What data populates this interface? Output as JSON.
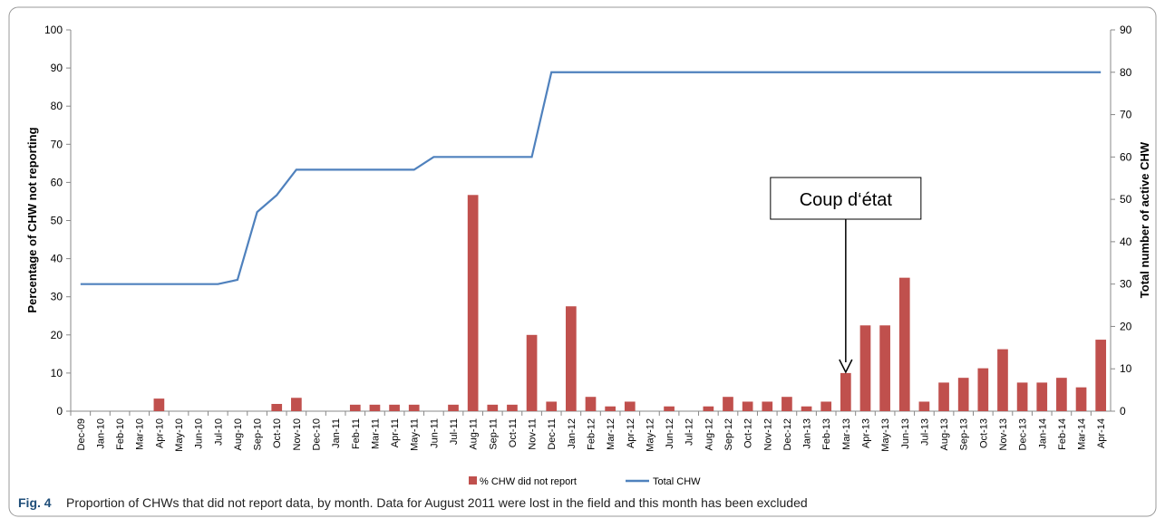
{
  "chart_data": {
    "type": "bar_line",
    "y_label": "Percentage of CHW not reporting",
    "y2_label": "Total number of active CHW",
    "categories": [
      "Dec-09",
      "Jan-10",
      "Feb-10",
      "Mar-10",
      "Apr-10",
      "May-10",
      "Jun-10",
      "Jul-10",
      "Aug-10",
      "Sep-10",
      "Oct-10",
      "Nov-10",
      "Dec-10",
      "Jan-11",
      "Feb-11",
      "Mar-11",
      "Apr-11",
      "May-11",
      "Jun-11",
      "Jul-11",
      "Aug-11",
      "Sep-11",
      "Oct-11",
      "Nov-11",
      "Dec-11",
      "Jan-12",
      "Feb-12",
      "Mar-12",
      "Apr-12",
      "May-12",
      "Jun-12",
      "Jul-12",
      "Aug-12",
      "Sep-12",
      "Oct-12",
      "Nov-12",
      "Dec-12",
      "Jan-13",
      "Feb-13",
      "Mar-13",
      "Apr-13",
      "May-13",
      "Jun-13",
      "Jul-13",
      "Aug-13",
      "Sep-13",
      "Oct-13",
      "Nov-13",
      "Dec-13",
      "Jan-14",
      "Feb-14",
      "Mar-14",
      "Apr-14"
    ],
    "series": [
      {
        "name": "% CHW did not report",
        "type": "bar",
        "color": "#c0504d",
        "values": [
          0,
          0,
          0,
          0,
          3.3,
          0,
          0,
          0,
          0,
          0,
          1.9,
          3.5,
          0,
          0,
          1.7,
          1.7,
          1.7,
          1.7,
          0,
          1.7,
          56.7,
          1.7,
          1.7,
          20,
          2.5,
          27.5,
          3.75,
          1.25,
          2.5,
          0,
          1.25,
          0,
          1.25,
          3.75,
          2.5,
          2.5,
          3.75,
          1.25,
          2.5,
          10,
          22.5,
          22.5,
          35,
          2.5,
          7.5,
          8.75,
          11.25,
          16.25,
          7.5,
          7.5,
          8.75,
          6.25,
          18.75
        ]
      },
      {
        "name": "Total CHW",
        "type": "line",
        "axis": "y2",
        "color": "#4f81bd",
        "values": [
          30,
          30,
          30,
          30,
          30,
          30,
          30,
          30,
          31,
          47,
          51,
          57,
          57,
          57,
          57,
          57,
          57,
          57,
          60,
          60,
          60,
          60,
          60,
          60,
          80,
          80,
          80,
          80,
          80,
          80,
          80,
          80,
          80,
          80,
          80,
          80,
          80,
          80,
          80,
          80,
          80,
          80,
          80,
          80,
          80,
          80,
          80,
          80,
          80,
          80,
          80,
          80,
          80
        ]
      }
    ],
    "ylim": [
      0,
      100
    ],
    "yticks": [
      0,
      10,
      20,
      30,
      40,
      50,
      60,
      70,
      80,
      90,
      100
    ],
    "y2lim": [
      0,
      90
    ],
    "y2ticks": [
      0,
      10,
      20,
      30,
      40,
      50,
      60,
      70,
      80,
      90
    ],
    "annotation": {
      "text": "Coup d‘état",
      "category": "Mar-13"
    },
    "figure_label": "Fig. 4",
    "caption": "Proportion of CHWs that did not report data, by month. Data for August 2011 were lost in the field and this month has been excluded"
  }
}
